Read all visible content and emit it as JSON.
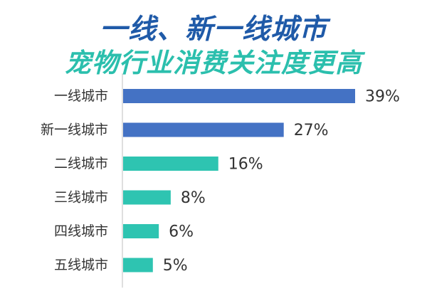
{
  "header": {
    "title_line1": "一线、新一线城市",
    "title_line2": "宠物行业消费关注度更高"
  },
  "colors": {
    "title_line1": "#1f5aa8",
    "title_line2": "#2bbfad",
    "bar_highlight": "#4472c4",
    "bar_other": "#2ec4b1",
    "axis": "#bfbfbf"
  },
  "chart_data": {
    "type": "bar",
    "orientation": "horizontal",
    "categories": [
      "一线城市",
      "新一线城市",
      "二线城市",
      "三线城市",
      "四线城市",
      "五线城市"
    ],
    "values": [
      39,
      27,
      16,
      8,
      6,
      5
    ],
    "value_labels": [
      "39%",
      "27%",
      "16%",
      "8%",
      "6%",
      "5%"
    ],
    "highlighted": [
      true,
      true,
      false,
      false,
      false,
      false
    ],
    "xlim": [
      0,
      39
    ],
    "grid": false,
    "legend": "none"
  }
}
